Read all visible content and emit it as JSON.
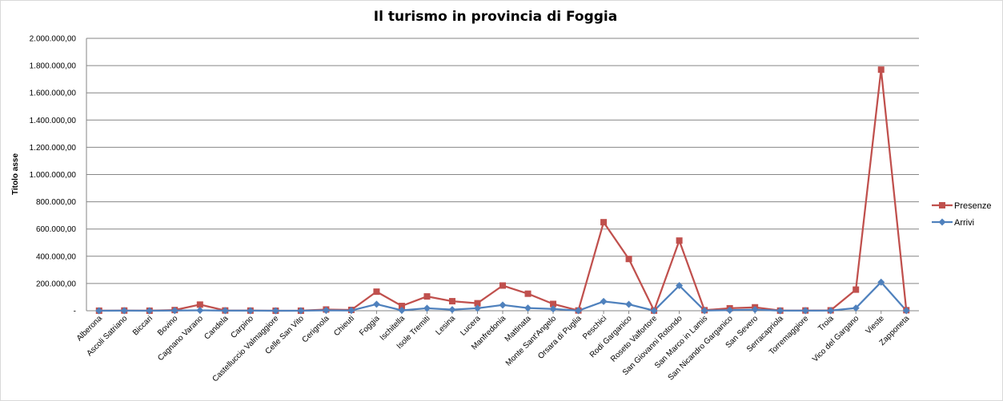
{
  "chart_data": {
    "type": "line",
    "title": "Il turismo in provincia di Foggia",
    "ylabel": "Titolo asse",
    "xlabel": "",
    "ylim": [
      0,
      2000000
    ],
    "yticks": [
      {
        "value": 0,
        "label": "-"
      },
      {
        "value": 200000,
        "label": "200.000,00"
      },
      {
        "value": 400000,
        "label": "400.000,00"
      },
      {
        "value": 600000,
        "label": "600.000,00"
      },
      {
        "value": 800000,
        "label": "800.000,00"
      },
      {
        "value": 1000000,
        "label": "1.000.000,00"
      },
      {
        "value": 1200000,
        "label": "1.200.000,00"
      },
      {
        "value": 1400000,
        "label": "1.400.000,00"
      },
      {
        "value": 1600000,
        "label": "1.600.000,00"
      },
      {
        "value": 1800000,
        "label": "1.800.000,00"
      },
      {
        "value": 2000000,
        "label": "2.000.000,00"
      }
    ],
    "grid": true,
    "legend_position": "right",
    "categories": [
      "Alberona",
      "Ascoli Satriano",
      "Biccari",
      "Bovino",
      "Cagnano Varano",
      "Candela",
      "Carpino",
      "Castelluccio Valmaggiore",
      "Celle San Vito",
      "Cerignola",
      "Chieuti",
      "Foggia",
      "Ischitella",
      "Isole Tremiti",
      "Lesina",
      "Lucera",
      "Manfredonia",
      "Mattinata",
      "Monte Sant'Angelo",
      "Orsara di Puglia",
      "Peschici",
      "Rodi Garganico",
      "Roseto Valfortore",
      "San Giovanni Rotondo",
      "San Marco in Lamis",
      "San Nicandro Garganico",
      "San Severo",
      "Serracapriola",
      "Torremaggiore",
      "Troia",
      "Vico del Gargano",
      "Vieste",
      "Zapponeta"
    ],
    "series": [
      {
        "name": "Presenze",
        "color": "#c0504d",
        "marker": "square",
        "values": [
          500,
          1500,
          300,
          5000,
          45000,
          2000,
          1000,
          200,
          300,
          9000,
          6000,
          140000,
          35000,
          105000,
          70000,
          55000,
          185000,
          125000,
          50000,
          2000,
          650000,
          380000,
          1000,
          515000,
          4000,
          18000,
          25000,
          1000,
          2000,
          3000,
          155000,
          1770000,
          4000
        ]
      },
      {
        "name": "Arrivi",
        "color": "#4f81bd",
        "marker": "diamond",
        "values": [
          200,
          500,
          100,
          1500,
          3000,
          500,
          300,
          100,
          100,
          3000,
          2000,
          48000,
          3000,
          18000,
          8000,
          18000,
          42000,
          20000,
          13000,
          500,
          68000,
          47000,
          300,
          185000,
          1000,
          4000,
          8000,
          300,
          500,
          1000,
          20000,
          210000,
          1000
        ]
      }
    ],
    "colors": {
      "presenze": "#c0504d",
      "arrivi": "#4f81bd",
      "grid": "#868686"
    }
  }
}
